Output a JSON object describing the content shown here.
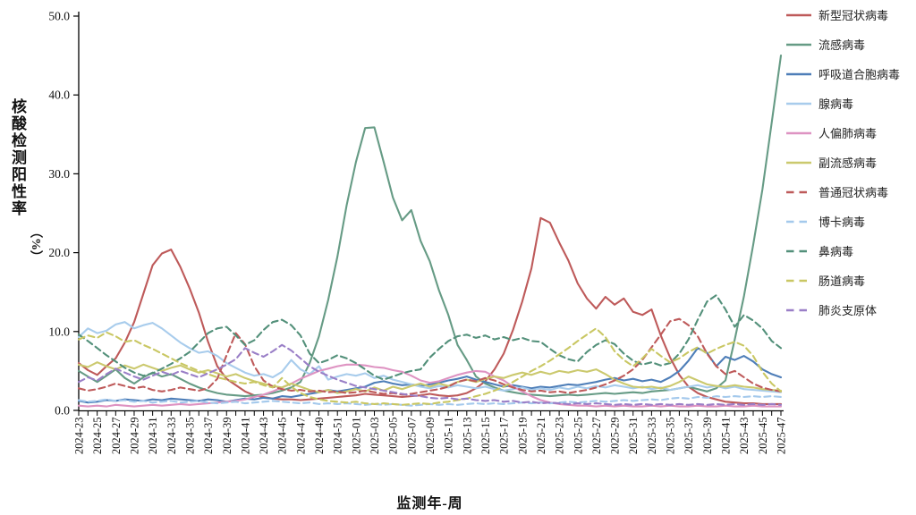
{
  "chart_data": {
    "type": "line",
    "title": "",
    "xlabel": "监测年-周",
    "ylabel_main": "核酸检测阳性率",
    "ylabel_unit": "（%）",
    "ylim": [
      0,
      50
    ],
    "y_ticks": [
      "0.0",
      "10.0",
      "20.0",
      "30.0",
      "40.0",
      "50.0"
    ],
    "grid": false,
    "legend_position": "right",
    "x_tick_label_every": 2,
    "x": [
      "2024-23",
      "2024-24",
      "2024-25",
      "2024-26",
      "2024-27",
      "2024-28",
      "2024-29",
      "2024-30",
      "2024-31",
      "2024-32",
      "2024-33",
      "2024-34",
      "2024-35",
      "2024-36",
      "2024-37",
      "2024-38",
      "2024-39",
      "2024-40",
      "2024-41",
      "2024-42",
      "2024-43",
      "2024-44",
      "2024-45",
      "2024-46",
      "2024-47",
      "2024-48",
      "2024-49",
      "2024-50",
      "2024-51",
      "2024-52",
      "2025-01",
      "2025-02",
      "2025-03",
      "2025-04",
      "2025-05",
      "2025-06",
      "2025-07",
      "2025-08",
      "2025-09",
      "2025-10",
      "2025-11",
      "2025-12",
      "2025-13",
      "2025-14",
      "2025-15",
      "2025-16",
      "2025-17",
      "2025-18",
      "2025-19",
      "2025-20",
      "2025-21",
      "2025-22",
      "2025-23",
      "2025-24",
      "2025-25",
      "2025-26",
      "2025-27",
      "2025-28",
      "2025-29",
      "2025-30",
      "2025-31",
      "2025-32",
      "2025-33",
      "2025-34",
      "2025-35",
      "2025-36",
      "2025-37",
      "2025-38",
      "2025-39",
      "2025-40",
      "2025-41",
      "2025-42",
      "2025-43",
      "2025-44",
      "2025-45",
      "2025-46",
      "2025-47"
    ],
    "series": [
      {
        "id": "sars-cov-2",
        "name": "新型冠状病毒",
        "color": "#BE5A5A",
        "dash": "solid",
        "values": [
          6.0,
          5.1,
          4.5,
          5.6,
          6.6,
          8.6,
          11.2,
          14.8,
          18.4,
          19.9,
          20.4,
          18.2,
          15.5,
          12.4,
          8.7,
          5.6,
          4.0,
          3.2,
          2.4,
          1.9,
          1.7,
          1.5,
          1.4,
          1.4,
          1.3,
          1.4,
          1.5,
          1.6,
          1.7,
          1.8,
          1.9,
          2.1,
          2.0,
          1.9,
          1.8,
          1.7,
          1.8,
          1.9,
          2.1,
          1.9,
          1.8,
          1.9,
          2.2,
          2.8,
          3.7,
          5.2,
          7.2,
          10.2,
          13.8,
          18.0,
          24.4,
          23.8,
          21.3,
          19.0,
          16.1,
          14.2,
          12.9,
          14.4,
          13.4,
          14.2,
          12.5,
          12.1,
          12.8,
          9.5,
          6.7,
          4.5,
          3.0,
          2.2,
          1.7,
          1.4,
          1.1,
          1.0,
          0.9,
          0.9,
          0.8,
          0.8,
          0.8
        ]
      },
      {
        "id": "influenza",
        "name": "流感病毒",
        "color": "#669B85",
        "dash": "solid",
        "values": [
          5.0,
          4.3,
          3.6,
          4.4,
          5.2,
          4.1,
          3.4,
          4.2,
          4.8,
          4.3,
          4.6,
          4.0,
          3.4,
          2.9,
          2.5,
          2.2,
          2.0,
          1.9,
          1.8,
          1.9,
          2.0,
          2.2,
          2.5,
          2.9,
          3.6,
          6.0,
          9.4,
          14.0,
          19.5,
          26.0,
          31.5,
          35.8,
          35.9,
          31.5,
          27.0,
          24.1,
          25.4,
          21.5,
          18.9,
          15.2,
          12.1,
          8.3,
          6.4,
          4.3,
          3.4,
          2.9,
          2.5,
          2.3,
          2.1,
          2.0,
          1.9,
          1.8,
          1.9,
          2.0,
          1.9,
          2.0,
          2.1,
          2.2,
          2.1,
          2.2,
          2.3,
          2.2,
          2.4,
          2.5,
          2.6,
          2.8,
          3.0,
          2.7,
          2.4,
          2.8,
          3.8,
          9.0,
          14.5,
          21.0,
          28.0,
          36.5,
          45.0
        ]
      },
      {
        "id": "rsv",
        "name": "呼吸道合胞病毒",
        "color": "#4E7EB8",
        "dash": "solid",
        "values": [
          1.2,
          1.0,
          1.1,
          1.3,
          1.2,
          1.4,
          1.3,
          1.2,
          1.4,
          1.3,
          1.5,
          1.4,
          1.3,
          1.2,
          1.4,
          1.3,
          1.1,
          1.3,
          1.5,
          1.4,
          1.6,
          1.5,
          1.8,
          1.7,
          1.9,
          2.1,
          2.3,
          2.6,
          2.4,
          2.6,
          2.8,
          3.0,
          3.5,
          3.7,
          3.4,
          3.2,
          3.3,
          3.1,
          3.3,
          3.5,
          3.8,
          4.0,
          4.3,
          3.9,
          3.6,
          3.3,
          3.0,
          3.2,
          3.0,
          2.8,
          3.0,
          2.9,
          3.1,
          3.3,
          3.2,
          3.4,
          3.6,
          3.9,
          4.1,
          3.8,
          4.0,
          3.7,
          3.9,
          3.6,
          4.2,
          5.0,
          6.3,
          7.9,
          7.3,
          5.6,
          6.8,
          6.4,
          6.9,
          6.2,
          5.2,
          4.6,
          4.2
        ]
      },
      {
        "id": "adenovirus",
        "name": "腺病毒",
        "color": "#A8CCEC",
        "dash": "solid",
        "values": [
          9.3,
          10.4,
          9.8,
          10.1,
          10.9,
          11.2,
          10.4,
          10.8,
          11.1,
          10.4,
          9.5,
          8.6,
          7.9,
          7.3,
          7.5,
          6.9,
          6.0,
          5.4,
          4.8,
          4.4,
          4.6,
          4.2,
          4.9,
          6.4,
          5.2,
          4.6,
          5.6,
          3.9,
          4.3,
          4.6,
          4.4,
          4.7,
          4.1,
          4.4,
          3.9,
          3.6,
          3.3,
          3.0,
          2.8,
          3.1,
          2.9,
          3.2,
          3.0,
          2.8,
          3.0,
          2.7,
          2.5,
          2.7,
          2.9,
          2.6,
          2.8,
          2.6,
          2.9,
          2.7,
          3.0,
          2.8,
          3.1,
          2.9,
          3.2,
          3.0,
          2.8,
          3.0,
          2.7,
          2.9,
          2.6,
          2.8,
          3.0,
          3.2,
          2.9,
          3.1,
          2.8,
          3.0,
          2.7,
          2.6,
          2.5,
          2.4,
          2.3
        ]
      },
      {
        "id": "hmpv",
        "name": "人偏肺病毒",
        "color": "#DE93C2",
        "dash": "solid",
        "values": [
          0.6,
          0.5,
          0.6,
          0.5,
          0.7,
          0.6,
          0.5,
          0.6,
          0.7,
          0.6,
          0.7,
          0.8,
          0.7,
          0.8,
          0.9,
          1.0,
          1.1,
          1.2,
          1.4,
          1.7,
          2.0,
          2.4,
          2.9,
          3.4,
          4.0,
          4.5,
          5.0,
          5.3,
          5.6,
          5.8,
          5.8,
          5.7,
          5.5,
          5.4,
          5.1,
          4.9,
          4.4,
          3.8,
          3.5,
          3.7,
          4.1,
          4.5,
          4.8,
          5.0,
          4.9,
          4.3,
          3.8,
          3.0,
          2.4,
          1.8,
          1.3,
          1.0,
          0.8,
          0.7,
          0.6,
          0.6,
          0.5,
          0.6,
          0.5,
          0.6,
          0.5,
          0.5,
          0.6,
          0.5,
          0.6,
          0.5,
          0.5,
          0.6,
          0.5,
          0.5,
          0.6,
          0.5,
          0.5,
          0.6,
          0.5,
          0.5,
          0.5
        ]
      },
      {
        "id": "parainfluenza",
        "name": "副流感病毒",
        "color": "#CBC96E",
        "dash": "solid",
        "values": [
          5.8,
          5.5,
          6.1,
          5.6,
          5.2,
          5.7,
          5.3,
          5.8,
          5.4,
          5.0,
          5.4,
          5.7,
          5.2,
          4.8,
          5.1,
          4.7,
          4.3,
          4.6,
          4.1,
          3.7,
          3.4,
          3.1,
          2.9,
          3.4,
          3.0,
          2.6,
          2.3,
          2.6,
          2.2,
          2.4,
          2.7,
          2.4,
          2.9,
          2.5,
          3.0,
          2.7,
          3.1,
          3.4,
          3.0,
          3.4,
          3.1,
          3.6,
          3.9,
          3.6,
          4.0,
          4.3,
          4.1,
          4.5,
          4.8,
          4.5,
          4.9,
          4.6,
          5.0,
          4.8,
          5.1,
          4.9,
          5.2,
          4.6,
          3.9,
          3.4,
          3.0,
          2.9,
          3.0,
          2.8,
          3.1,
          3.6,
          4.3,
          3.8,
          3.3,
          3.1,
          3.0,
          3.2,
          3.0,
          2.9,
          2.7,
          2.6,
          2.5
        ]
      },
      {
        "id": "common-coronavirus",
        "name": "普通冠状病毒",
        "color": "#BE5A5A",
        "dash": "dashed",
        "values": [
          2.8,
          2.5,
          2.7,
          3.0,
          3.4,
          3.1,
          2.8,
          3.0,
          2.6,
          2.4,
          2.6,
          2.9,
          2.7,
          2.5,
          2.8,
          4.0,
          7.0,
          9.8,
          8.4,
          5.6,
          3.8,
          3.0,
          2.7,
          2.5,
          2.6,
          2.4,
          2.5,
          2.3,
          2.4,
          2.2,
          2.3,
          2.5,
          2.3,
          2.1,
          2.2,
          2.0,
          2.1,
          2.3,
          2.5,
          2.7,
          3.0,
          3.6,
          3.9,
          3.7,
          4.1,
          3.8,
          3.3,
          2.9,
          2.6,
          2.4,
          2.5,
          2.3,
          2.4,
          2.2,
          2.4,
          2.6,
          2.9,
          3.3,
          3.8,
          4.4,
          5.2,
          6.4,
          8.0,
          9.6,
          11.3,
          11.6,
          10.8,
          9.4,
          7.2,
          5.6,
          4.6,
          5.0,
          4.2,
          3.4,
          2.9,
          2.6,
          2.4
        ]
      },
      {
        "id": "bocavirus",
        "name": "博卡病毒",
        "color": "#A4C9EC",
        "dash": "dashed",
        "values": [
          1.3,
          1.1,
          1.2,
          1.4,
          1.2,
          1.3,
          1.1,
          1.2,
          1.0,
          1.1,
          1.2,
          1.0,
          1.1,
          1.2,
          1.0,
          0.9,
          1.0,
          1.1,
          0.9,
          1.0,
          1.1,
          1.2,
          1.1,
          1.0,
          0.9,
          1.0,
          0.8,
          0.9,
          0.8,
          0.9,
          0.8,
          0.7,
          0.8,
          0.7,
          0.8,
          0.7,
          0.6,
          0.7,
          0.8,
          0.7,
          0.8,
          0.7,
          0.8,
          0.9,
          0.8,
          0.9,
          0.8,
          0.9,
          1.0,
          0.9,
          1.0,
          0.9,
          1.0,
          1.1,
          1.0,
          1.1,
          1.2,
          1.1,
          1.2,
          1.3,
          1.2,
          1.3,
          1.4,
          1.3,
          1.5,
          1.6,
          1.5,
          1.7,
          1.6,
          1.8,
          1.7,
          1.8,
          1.7,
          1.8,
          1.7,
          1.8,
          1.7
        ]
      },
      {
        "id": "rhinovirus",
        "name": "鼻病毒",
        "color": "#53907A",
        "dash": "dashed",
        "values": [
          9.6,
          8.8,
          7.9,
          7.0,
          6.2,
          5.4,
          4.8,
          4.4,
          4.7,
          5.3,
          5.9,
          6.6,
          7.4,
          8.6,
          9.8,
          10.4,
          10.6,
          9.5,
          8.3,
          8.9,
          10.2,
          11.2,
          11.5,
          10.8,
          9.5,
          7.2,
          6.0,
          6.4,
          7.0,
          6.6,
          6.0,
          5.2,
          4.4,
          3.9,
          4.3,
          4.7,
          5.0,
          5.2,
          6.7,
          7.8,
          8.8,
          9.4,
          9.6,
          9.2,
          9.5,
          9.0,
          9.3,
          8.9,
          9.2,
          8.8,
          8.7,
          7.8,
          7.0,
          6.5,
          6.2,
          7.4,
          8.3,
          8.9,
          8.4,
          7.2,
          6.3,
          5.8,
          6.1,
          5.7,
          6.0,
          7.2,
          9.0,
          11.5,
          13.8,
          14.6,
          12.8,
          10.6,
          12.1,
          11.4,
          10.4,
          8.8,
          7.9
        ]
      },
      {
        "id": "enterovirus",
        "name": "肠道病毒",
        "color": "#C9C763",
        "dash": "dashed",
        "values": [
          9.0,
          9.5,
          9.2,
          9.9,
          9.4,
          8.7,
          8.9,
          8.3,
          7.8,
          7.2,
          6.6,
          6.0,
          5.5,
          5.0,
          4.6,
          4.2,
          3.9,
          3.6,
          3.4,
          3.6,
          3.2,
          2.9,
          4.1,
          3.0,
          2.2,
          1.7,
          1.4,
          1.2,
          1.1,
          1.0,
          1.1,
          0.9,
          0.8,
          0.9,
          0.8,
          0.7,
          0.8,
          0.9,
          0.8,
          1.0,
          1.1,
          1.3,
          1.5,
          1.8,
          2.1,
          2.5,
          3.0,
          3.6,
          4.3,
          5.0,
          5.6,
          6.3,
          7.1,
          7.9,
          8.8,
          9.6,
          10.4,
          9.3,
          7.5,
          6.4,
          5.6,
          6.6,
          7.8,
          6.9,
          6.1,
          6.6,
          7.4,
          8.0,
          7.2,
          7.8,
          8.3,
          8.7,
          8.2,
          6.9,
          4.9,
          3.4,
          2.4
        ]
      },
      {
        "id": "mycoplasma",
        "name": "肺炎支原体",
        "color": "#9A7FC7",
        "dash": "dashed",
        "values": [
          3.6,
          4.2,
          3.8,
          4.6,
          5.3,
          4.8,
          4.3,
          3.9,
          4.4,
          4.9,
          4.5,
          5.0,
          4.6,
          4.2,
          4.7,
          5.2,
          5.8,
          6.5,
          7.9,
          7.3,
          6.8,
          7.5,
          8.3,
          7.6,
          6.6,
          5.6,
          4.9,
          4.4,
          3.9,
          3.5,
          3.1,
          2.9,
          2.7,
          2.5,
          2.3,
          2.1,
          1.9,
          1.8,
          1.6,
          1.5,
          1.6,
          1.4,
          1.5,
          1.3,
          1.2,
          1.3,
          1.1,
          1.2,
          1.0,
          1.1,
          0.9,
          1.0,
          0.9,
          0.8,
          0.9,
          0.8,
          0.9,
          0.8,
          0.7,
          0.8,
          0.7,
          0.8,
          0.7,
          0.8,
          0.7,
          0.8,
          0.7,
          0.8,
          0.7,
          0.8,
          0.7,
          0.8,
          0.7,
          0.8,
          0.7,
          0.8,
          0.7
        ]
      }
    ]
  }
}
